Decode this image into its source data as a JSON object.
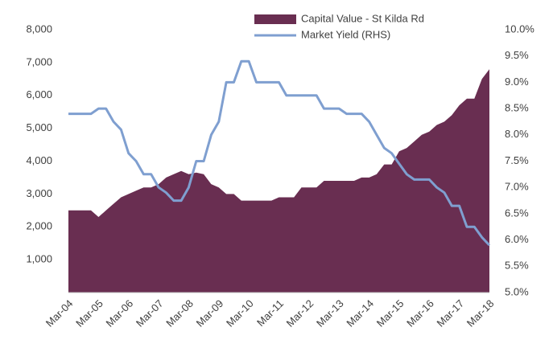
{
  "chart_data": {
    "type": "area-line",
    "categories": [
      "Mar-04",
      null,
      null,
      null,
      "Mar-05",
      null,
      null,
      null,
      "Mar-06",
      null,
      null,
      null,
      "Mar-07",
      null,
      null,
      null,
      "Mar-08",
      null,
      null,
      null,
      "Mar-09",
      null,
      null,
      null,
      "Mar-10",
      null,
      null,
      null,
      "Mar-11",
      null,
      null,
      null,
      "Mar-12",
      null,
      null,
      null,
      "Mar-13",
      null,
      null,
      null,
      "Mar-14",
      null,
      null,
      null,
      "Mar-15",
      null,
      null,
      null,
      "Mar-16",
      null,
      null,
      null,
      "Mar-17",
      null,
      null,
      null,
      "Mar-18"
    ],
    "series": [
      {
        "name": "Capital Value - St Kilda Rd",
        "color": "#692e51",
        "kind": "area",
        "values": [
          2500,
          2500,
          2500,
          2500,
          2300,
          2500,
          2700,
          2900,
          3000,
          3100,
          3200,
          3200,
          3300,
          3500,
          3600,
          3700,
          3600,
          3650,
          3600,
          3300,
          3200,
          3000,
          3000,
          2800,
          2800,
          2800,
          2800,
          2800,
          2900,
          2900,
          2900,
          3200,
          3200,
          3200,
          3400,
          3400,
          3400,
          3400,
          3400,
          3500,
          3500,
          3600,
          3900,
          3900,
          4300,
          4400,
          4600,
          4800,
          4900,
          5100,
          5200,
          5400,
          5700,
          5900,
          5900,
          6500,
          6800
        ]
      },
      {
        "name": "Market Yield (RHS)",
        "color": "#7f9fd0",
        "kind": "line",
        "axis": "y2",
        "values": [
          8.4,
          8.4,
          8.4,
          8.4,
          8.5,
          8.5,
          8.25,
          8.1,
          7.65,
          7.5,
          7.25,
          7.25,
          7.0,
          6.9,
          6.75,
          6.75,
          7.0,
          7.5,
          7.5,
          8.0,
          8.25,
          9.0,
          9.0,
          9.4,
          9.4,
          9.0,
          9.0,
          9.0,
          9.0,
          8.75,
          8.75,
          8.75,
          8.75,
          8.75,
          8.5,
          8.5,
          8.5,
          8.4,
          8.4,
          8.4,
          8.25,
          8.0,
          7.75,
          7.65,
          7.45,
          7.25,
          7.15,
          7.15,
          7.15,
          7.0,
          6.9,
          6.65,
          6.65,
          6.25,
          6.25,
          6.05,
          5.9
        ]
      }
    ],
    "ylim": [
      0,
      8000
    ],
    "yticks": [
      {
        "value": 1000,
        "label": "1,000"
      },
      {
        "value": 2000,
        "label": "2,000"
      },
      {
        "value": 3000,
        "label": "3,000"
      },
      {
        "value": 4000,
        "label": "4,000"
      },
      {
        "value": 5000,
        "label": "5,000"
      },
      {
        "value": 6000,
        "label": "6,000"
      },
      {
        "value": 7000,
        "label": "7,000"
      },
      {
        "value": 8000,
        "label": "8,000"
      }
    ],
    "y2lim": [
      5,
      10
    ],
    "y2ticks": [
      {
        "value": 5,
        "label": "5.0%"
      },
      {
        "value": 5.5,
        "label": "5.5%"
      },
      {
        "value": 6,
        "label": "6.0%"
      },
      {
        "value": 6.5,
        "label": "6.5%"
      },
      {
        "value": 7,
        "label": "7.0%"
      },
      {
        "value": 7.5,
        "label": "7.5%"
      },
      {
        "value": 8,
        "label": "8.0%"
      },
      {
        "value": 8.5,
        "label": "8.5%"
      },
      {
        "value": 9,
        "label": "9.0%"
      },
      {
        "value": 9.5,
        "label": "9.5%"
      },
      {
        "value": 10,
        "label": "10.0%"
      }
    ],
    "legend": "top"
  }
}
